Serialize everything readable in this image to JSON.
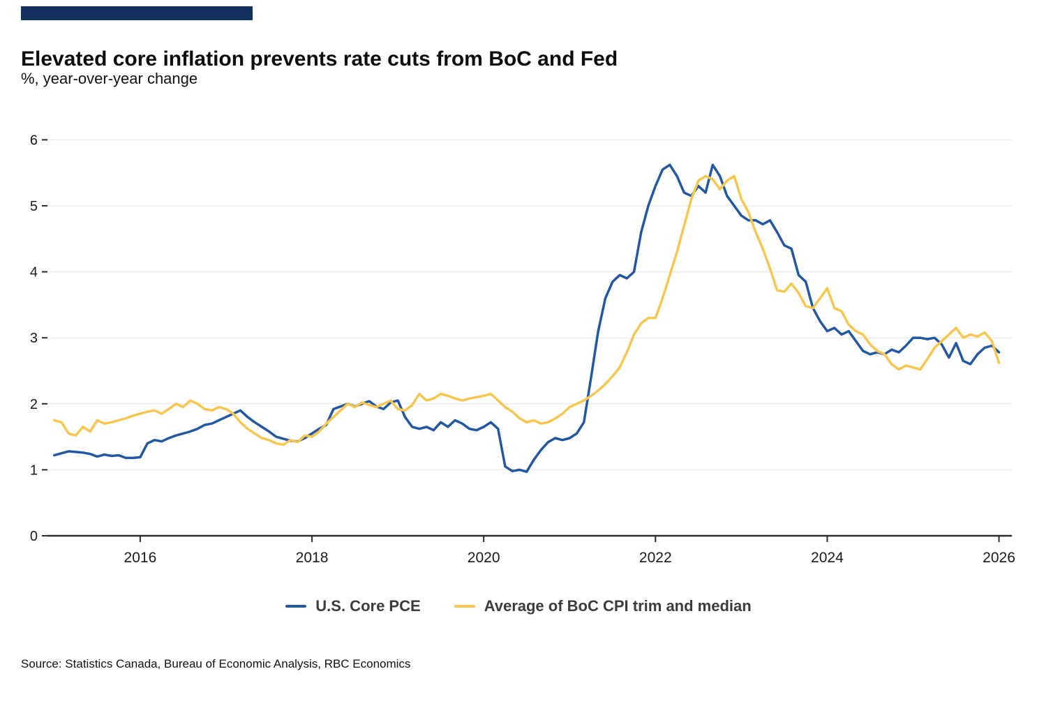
{
  "brand": {
    "accent_color": "#13305e"
  },
  "header": {
    "title": "Elevated core inflation prevents rate cuts from BoC and Fed",
    "subtitle": "%, year-over-year change"
  },
  "footer": {
    "source": "Source: Statistics Canada, Bureau of Economic Analysis, RBC Economics"
  },
  "chart_data": {
    "type": "line",
    "title": "Elevated core inflation prevents rate cuts from BoC and Fed",
    "ylabel": "%, year-over-year change",
    "grid": "horizontal",
    "legend_position": "bottom",
    "x_start_year": 2015,
    "x_step_months": 1,
    "x_ticks": [
      2016,
      2018,
      2020,
      2022,
      2024,
      2026
    ],
    "y_ticks": [
      0,
      1,
      2,
      3,
      4,
      5,
      6
    ],
    "xlim": [
      2014.92,
      2026.15
    ],
    "ylim": [
      0,
      6.3
    ],
    "series": [
      {
        "name": "U.S. Core PCE",
        "color": "#2257A4",
        "values": [
          1.22,
          1.25,
          1.28,
          1.27,
          1.26,
          1.24,
          1.2,
          1.23,
          1.21,
          1.22,
          1.18,
          1.18,
          1.19,
          1.4,
          1.45,
          1.43,
          1.48,
          1.52,
          1.55,
          1.58,
          1.62,
          1.68,
          1.7,
          1.75,
          1.8,
          1.85,
          1.9,
          1.8,
          1.72,
          1.65,
          1.58,
          1.5,
          1.47,
          1.44,
          1.43,
          1.48,
          1.55,
          1.62,
          1.68,
          1.92,
          1.96,
          2.0,
          1.96,
          2.0,
          2.04,
          1.96,
          1.92,
          2.02,
          2.05,
          1.8,
          1.65,
          1.62,
          1.65,
          1.6,
          1.72,
          1.65,
          1.75,
          1.7,
          1.62,
          1.6,
          1.65,
          1.72,
          1.62,
          1.05,
          0.98,
          1.0,
          0.97,
          1.15,
          1.3,
          1.42,
          1.48,
          1.45,
          1.48,
          1.55,
          1.72,
          2.4,
          3.1,
          3.6,
          3.85,
          3.95,
          3.9,
          4.0,
          4.6,
          5.0,
          5.3,
          5.55,
          5.62,
          5.45,
          5.2,
          5.15,
          5.3,
          5.2,
          5.62,
          5.45,
          5.15,
          5.0,
          4.85,
          4.78,
          4.78,
          4.72,
          4.78,
          4.6,
          4.4,
          4.35,
          3.95,
          3.85,
          3.45,
          3.25,
          3.1,
          3.15,
          3.05,
          3.1,
          2.95,
          2.8,
          2.75,
          2.78,
          2.75,
          2.82,
          2.78,
          2.88,
          3.0,
          3.0,
          2.98,
          3.0,
          2.9,
          2.7,
          2.92,
          2.65,
          2.6,
          2.75,
          2.85,
          2.88,
          2.78
        ]
      },
      {
        "name": "Average of BoC CPI trim and median",
        "color": "#F8C64F",
        "values": [
          1.75,
          1.72,
          1.55,
          1.52,
          1.65,
          1.58,
          1.75,
          1.7,
          1.72,
          1.75,
          1.78,
          1.82,
          1.85,
          1.88,
          1.9,
          1.85,
          1.92,
          2.0,
          1.95,
          2.05,
          2.0,
          1.92,
          1.9,
          1.95,
          1.92,
          1.85,
          1.72,
          1.62,
          1.55,
          1.48,
          1.45,
          1.4,
          1.38,
          1.45,
          1.42,
          1.52,
          1.5,
          1.58,
          1.7,
          1.8,
          1.9,
          2.0,
          1.95,
          2.02,
          1.98,
          1.95,
          2.0,
          2.05,
          1.92,
          1.9,
          1.98,
          2.15,
          2.05,
          2.08,
          2.15,
          2.12,
          2.08,
          2.05,
          2.08,
          2.1,
          2.12,
          2.15,
          2.05,
          1.95,
          1.88,
          1.78,
          1.72,
          1.75,
          1.7,
          1.72,
          1.78,
          1.85,
          1.95,
          2.0,
          2.05,
          2.12,
          2.2,
          2.3,
          2.42,
          2.55,
          2.78,
          3.05,
          3.22,
          3.3,
          3.3,
          3.6,
          3.95,
          4.3,
          4.7,
          5.1,
          5.38,
          5.45,
          5.4,
          5.25,
          5.38,
          5.45,
          5.1,
          4.9,
          4.6,
          4.35,
          4.05,
          3.72,
          3.7,
          3.82,
          3.68,
          3.48,
          3.45,
          3.6,
          3.75,
          3.45,
          3.4,
          3.2,
          3.1,
          3.05,
          2.9,
          2.8,
          2.75,
          2.6,
          2.52,
          2.58,
          2.55,
          2.52,
          2.68,
          2.85,
          2.95,
          3.05,
          3.15,
          3.0,
          3.05,
          3.02,
          3.08,
          2.95,
          2.62
        ]
      }
    ]
  }
}
